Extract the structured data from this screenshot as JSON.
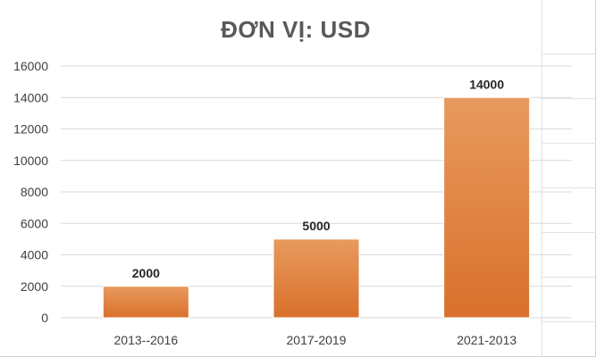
{
  "chart_data": {
    "type": "bar",
    "title": "ĐƠN VỊ: USD",
    "categories": [
      "2013--2016",
      "2017-2019",
      "2021-2013"
    ],
    "values": [
      2000,
      5000,
      14000
    ],
    "data_labels": [
      "2000",
      "5000",
      "14000"
    ],
    "ylim": [
      0,
      16000
    ],
    "yticks": [
      0,
      2000,
      4000,
      6000,
      8000,
      10000,
      12000,
      14000,
      16000
    ],
    "grid": true,
    "legend": "none",
    "colors": {
      "bar_top": "#e89a5e",
      "bar_bottom": "#d9702c",
      "grid": "#d9d9d9",
      "tick_text": "#404040",
      "label_text": "#262626",
      "title": "#595959"
    }
  }
}
